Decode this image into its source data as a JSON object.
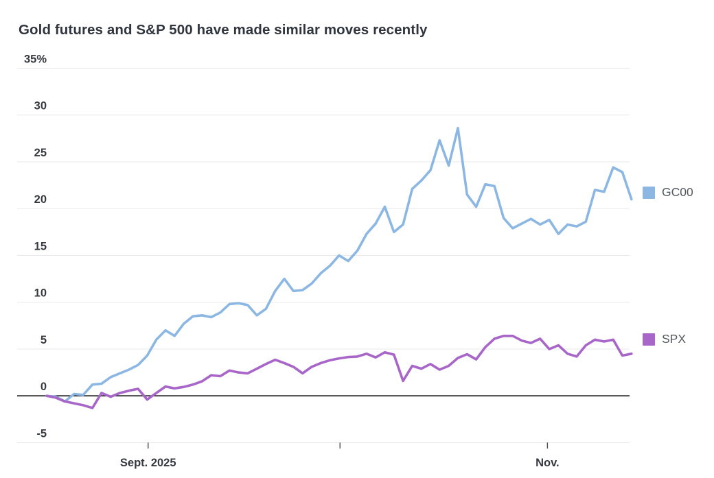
{
  "title": "Gold futures and S&P 500 have made similar moves recently",
  "legend": {
    "items": [
      {
        "label": "GC00",
        "color": "#8db7e3"
      },
      {
        "label": "SPX",
        "color": "#a766c8"
      }
    ]
  },
  "chart_data": {
    "type": "line",
    "title": "Gold futures and S&P 500 have made similar moves recently",
    "xlabel": "",
    "ylabel": "%",
    "ylim": [
      -5,
      35
    ],
    "grid": "horizontal",
    "zero_line": true,
    "legend_position": "right",
    "y_ticks": [
      {
        "value": 35,
        "label": "35%"
      },
      {
        "value": 30,
        "label": "30"
      },
      {
        "value": 25,
        "label": "25"
      },
      {
        "value": 20,
        "label": "20"
      },
      {
        "value": 15,
        "label": "15"
      },
      {
        "value": 10,
        "label": "10"
      },
      {
        "value": 5,
        "label": "5"
      },
      {
        "value": 0,
        "label": "0"
      },
      {
        "value": -5,
        "label": "-5"
      }
    ],
    "x_ticks": [
      {
        "pos": 11.1,
        "label": "Sept. 2025"
      },
      {
        "pos": 32.1,
        "label": ""
      },
      {
        "pos": 54.8,
        "label": "Nov."
      }
    ],
    "series": [
      {
        "name": "GC00",
        "color": "#8db7e3",
        "values": [
          0,
          -0.1,
          -0.6,
          0.2,
          0.1,
          1.2,
          1.3,
          2.0,
          2.4,
          2.8,
          3.3,
          4.3,
          6.0,
          7.0,
          6.4,
          7.7,
          8.5,
          8.6,
          8.4,
          8.9,
          9.8,
          9.9,
          9.7,
          8.6,
          9.3,
          11.2,
          12.5,
          11.2,
          11.3,
          12.0,
          13.1,
          13.9,
          15.0,
          14.4,
          15.5,
          17.3,
          18.4,
          20.2,
          17.5,
          18.3,
          22.1,
          23.0,
          24.1,
          27.3,
          24.6,
          28.6,
          21.5,
          20.2,
          22.6,
          22.4,
          19.0,
          17.9,
          18.4,
          18.9,
          18.3,
          18.8,
          17.3,
          18.3,
          18.1,
          18.6,
          22.0,
          21.8,
          24.4,
          23.9,
          21.0
        ]
      },
      {
        "name": "SPX",
        "color": "#a766c8",
        "values": [
          0,
          -0.2,
          -0.6,
          -0.8,
          -1.0,
          -1.3,
          0.3,
          -0.1,
          0.3,
          0.55,
          0.75,
          -0.4,
          0.3,
          1.0,
          0.8,
          0.95,
          1.2,
          1.55,
          2.2,
          2.1,
          2.7,
          2.5,
          2.4,
          2.9,
          3.4,
          3.85,
          3.5,
          3.1,
          2.4,
          3.1,
          3.5,
          3.8,
          4.0,
          4.15,
          4.2,
          4.5,
          4.1,
          4.65,
          4.4,
          1.6,
          3.2,
          2.9,
          3.4,
          2.8,
          3.2,
          4.05,
          4.45,
          3.9,
          5.2,
          6.1,
          6.4,
          6.4,
          5.9,
          5.65,
          6.1,
          5.0,
          5.4,
          4.5,
          4.2,
          5.4,
          6.0,
          5.8,
          6.0,
          4.3,
          4.5
        ]
      }
    ]
  }
}
